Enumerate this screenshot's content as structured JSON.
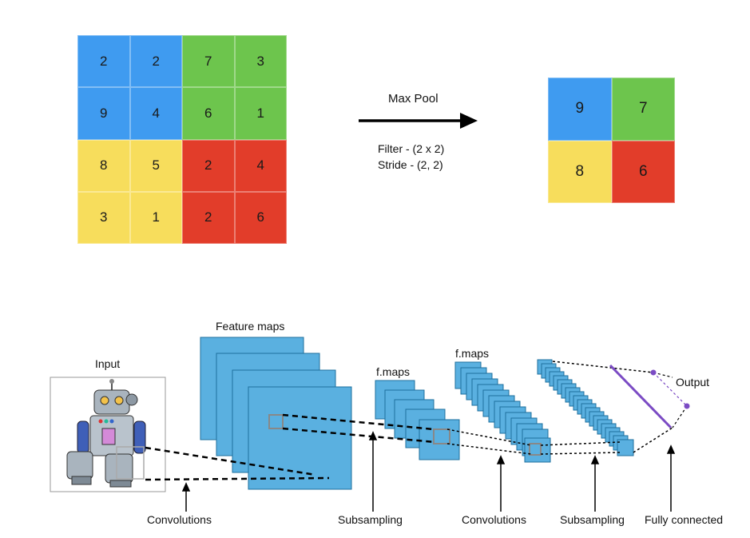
{
  "colors": {
    "blue": "#3f9bf0",
    "green": "#6dc54d",
    "yellow": "#f7dd5c",
    "red": "#e23d2a",
    "map_fill": "#5ab0e0",
    "map_stroke": "#1d6f9e",
    "purple": "#7b4bc4"
  },
  "pooling": {
    "input_grid": [
      [
        {
          "v": "2",
          "c": "blue"
        },
        {
          "v": "2",
          "c": "blue"
        },
        {
          "v": "7",
          "c": "green"
        },
        {
          "v": "3",
          "c": "green"
        }
      ],
      [
        {
          "v": "9",
          "c": "blue"
        },
        {
          "v": "4",
          "c": "blue"
        },
        {
          "v": "6",
          "c": "green"
        },
        {
          "v": "1",
          "c": "green"
        }
      ],
      [
        {
          "v": "8",
          "c": "yellow"
        },
        {
          "v": "5",
          "c": "yellow"
        },
        {
          "v": "2",
          "c": "red"
        },
        {
          "v": "4",
          "c": "red"
        }
      ],
      [
        {
          "v": "3",
          "c": "yellow"
        },
        {
          "v": "1",
          "c": "yellow"
        },
        {
          "v": "2",
          "c": "red"
        },
        {
          "v": "6",
          "c": "red"
        }
      ]
    ],
    "output_grid": [
      [
        {
          "v": "9",
          "c": "blue"
        },
        {
          "v": "7",
          "c": "green"
        }
      ],
      [
        {
          "v": "8",
          "c": "yellow"
        },
        {
          "v": "6",
          "c": "red"
        }
      ]
    ],
    "arrow_label": "Max Pool",
    "filter_text": "Filter - (2 x 2)",
    "stride_text": "Stride - (2, 2)"
  },
  "cnn": {
    "input_label": "Input",
    "feature_maps_label": "Feature maps",
    "fmaps_label_1": "f.maps",
    "fmaps_label_2": "f.maps",
    "output_label": "Output",
    "stages": [
      "Convolutions",
      "Subsampling",
      "Convolutions",
      "Subsampling",
      "Fully connected"
    ]
  }
}
